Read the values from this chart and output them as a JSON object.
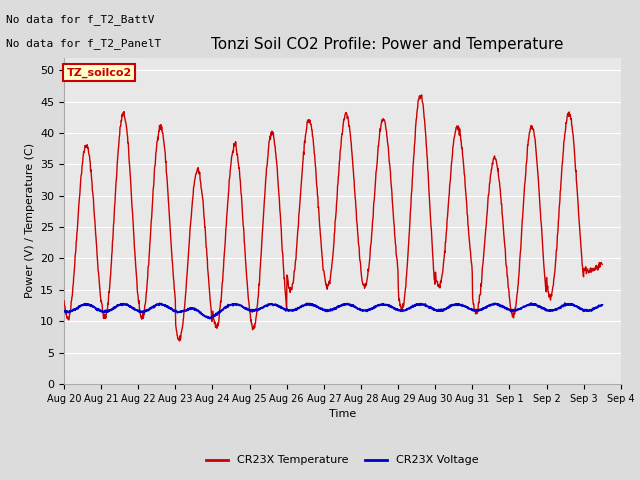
{
  "title": "Tonzi Soil CO2 Profile: Power and Temperature",
  "xlabel": "Time",
  "ylabel": "Power (V) / Temperature (C)",
  "ylim": [
    0,
    52
  ],
  "yticks": [
    0,
    5,
    10,
    15,
    20,
    25,
    30,
    35,
    40,
    45,
    50
  ],
  "background_color": "#dcdcdc",
  "plot_bg_color": "#e8e8e8",
  "no_data_text1": "No data for f_T2_BattV",
  "no_data_text2": "No data for f_T2_PanelT",
  "legend_box_label": "TZ_soilco2",
  "legend_box_color": "#ffffcc",
  "legend_box_border": "#cc0000",
  "temp_color": "#cc0000",
  "volt_color": "#0000cc",
  "temp_label": "CR23X Temperature",
  "volt_label": "CR23X Voltage",
  "title_fontsize": 11,
  "axis_label_fontsize": 8,
  "tick_fontsize": 8,
  "nodata_fontsize": 8,
  "legend_fontsize": 8,
  "xtick_labels": [
    "Aug 20",
    "Aug 21",
    "Aug 22",
    "Aug 23",
    "Aug 24",
    "Aug 25",
    "Aug 26",
    "Aug 27",
    "Aug 28",
    "Aug 29",
    "Aug 30",
    "Aug 31",
    "Sep 1",
    "Sep 2",
    "Sep 3",
    "Sep 4"
  ],
  "grid_color": "#ffffff",
  "day_peaks": [
    38,
    43,
    41,
    34,
    38,
    40,
    42,
    43,
    42,
    46,
    41,
    36,
    41,
    43,
    19
  ],
  "day_mins": [
    10.5,
    10.5,
    10.5,
    7.0,
    9.0,
    9.0,
    15.0,
    15.5,
    15.5,
    12.0,
    15.5,
    11.5,
    11.0,
    14.0,
    18.0
  ],
  "n_total_days": 14.5,
  "n_pts": 1500
}
